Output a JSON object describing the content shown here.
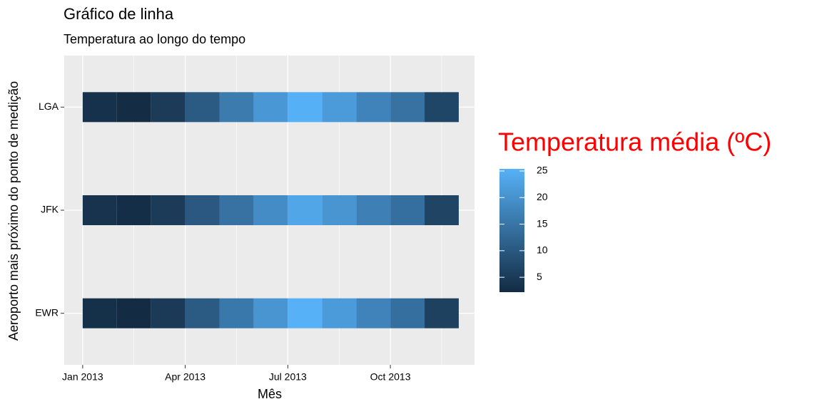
{
  "chart_data": {
    "type": "heatmap",
    "title": "Gráfico de linha",
    "subtitle": "Temperatura ao longo do tempo",
    "x_label": "Mês",
    "y_label": "Aeroporto mais próximo do ponto de medição",
    "legend_title": "Temperatura média (ºC)",
    "x": [
      "2013-01",
      "2013-02",
      "2013-03",
      "2013-04",
      "2013-05",
      "2013-06",
      "2013-07",
      "2013-08",
      "2013-09",
      "2013-10",
      "2013-11"
    ],
    "categories": [
      "EWR",
      "JFK",
      "LGA"
    ],
    "series": [
      {
        "name": "EWR",
        "values": [
          3.0,
          2.3,
          4.8,
          10.5,
          15.5,
          20.5,
          25.4,
          21.5,
          17.5,
          14.0,
          6.0
        ]
      },
      {
        "name": "JFK",
        "values": [
          3.5,
          2.8,
          5.0,
          10.0,
          14.5,
          19.0,
          23.5,
          20.5,
          17.0,
          14.0,
          6.5
        ]
      },
      {
        "name": "LGA",
        "values": [
          3.3,
          2.5,
          5.0,
          10.5,
          16.0,
          21.0,
          25.2,
          21.5,
          17.5,
          14.5,
          6.8
        ]
      }
    ],
    "xlim": [
      "2012-12-15",
      "2013-12-15"
    ],
    "xticks": [
      {
        "value": "2013-01",
        "label": "Jan 2013"
      },
      {
        "value": "2013-04",
        "label": "Apr 2013"
      },
      {
        "value": "2013-07",
        "label": "Jul 2013"
      },
      {
        "value": "2013-10",
        "label": "Oct 2013"
      }
    ],
    "colorlim": [
      2.2,
      25.4
    ],
    "colorticks": [
      5,
      10,
      15,
      20,
      25
    ],
    "color_low": "#132B43",
    "color_high": "#56B1F7",
    "grid": true
  }
}
